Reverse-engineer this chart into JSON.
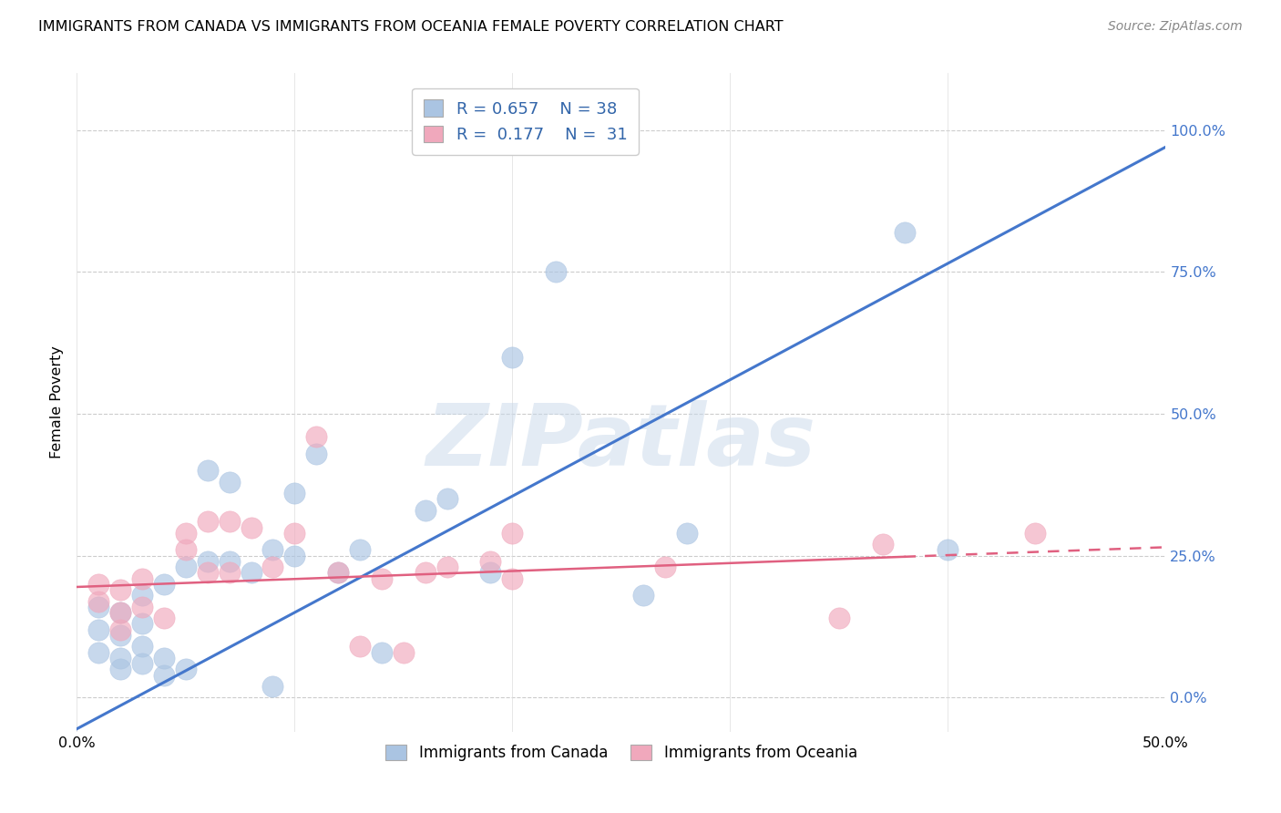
{
  "title": "IMMIGRANTS FROM CANADA VS IMMIGRANTS FROM OCEANIA FEMALE POVERTY CORRELATION CHART",
  "source": "Source: ZipAtlas.com",
  "ylabel": "Female Poverty",
  "xlim": [
    0.0,
    0.5
  ],
  "ylim": [
    -0.06,
    1.1
  ],
  "yticks": [
    0.0,
    0.25,
    0.5,
    0.75,
    1.0
  ],
  "xticks": [
    0.0,
    0.1,
    0.2,
    0.3,
    0.4,
    0.5
  ],
  "canada_R": 0.657,
  "canada_N": 38,
  "oceania_R": 0.177,
  "oceania_N": 31,
  "canada_color": "#aac4e2",
  "oceania_color": "#f0a8bc",
  "canada_line_color": "#4477cc",
  "oceania_line_color": "#e06080",
  "canada_line_m": 2.05,
  "canada_line_b": -0.055,
  "oceania_line_m": 0.14,
  "oceania_line_b": 0.195,
  "watermark_text": "ZIPatlas",
  "canada_x": [
    0.01,
    0.01,
    0.01,
    0.02,
    0.02,
    0.02,
    0.02,
    0.03,
    0.03,
    0.03,
    0.03,
    0.04,
    0.04,
    0.04,
    0.05,
    0.05,
    0.06,
    0.06,
    0.07,
    0.07,
    0.08,
    0.09,
    0.09,
    0.1,
    0.1,
    0.11,
    0.12,
    0.13,
    0.14,
    0.16,
    0.17,
    0.19,
    0.2,
    0.22,
    0.26,
    0.28,
    0.38,
    0.4
  ],
  "canada_y": [
    0.16,
    0.08,
    0.12,
    0.05,
    0.07,
    0.11,
    0.15,
    0.06,
    0.09,
    0.13,
    0.18,
    0.04,
    0.07,
    0.2,
    0.05,
    0.23,
    0.24,
    0.4,
    0.24,
    0.38,
    0.22,
    0.02,
    0.26,
    0.25,
    0.36,
    0.43,
    0.22,
    0.26,
    0.08,
    0.33,
    0.35,
    0.22,
    0.6,
    0.75,
    0.18,
    0.29,
    0.82,
    0.26
  ],
  "oceania_x": [
    0.01,
    0.01,
    0.02,
    0.02,
    0.02,
    0.03,
    0.03,
    0.04,
    0.05,
    0.05,
    0.06,
    0.06,
    0.07,
    0.07,
    0.08,
    0.09,
    0.1,
    0.11,
    0.12,
    0.13,
    0.14,
    0.15,
    0.16,
    0.17,
    0.19,
    0.2,
    0.2,
    0.27,
    0.35,
    0.37,
    0.44
  ],
  "oceania_y": [
    0.17,
    0.2,
    0.12,
    0.15,
    0.19,
    0.16,
    0.21,
    0.14,
    0.26,
    0.29,
    0.22,
    0.31,
    0.22,
    0.31,
    0.3,
    0.23,
    0.29,
    0.46,
    0.22,
    0.09,
    0.21,
    0.08,
    0.22,
    0.23,
    0.24,
    0.21,
    0.29,
    0.23,
    0.14,
    0.27,
    0.29
  ]
}
